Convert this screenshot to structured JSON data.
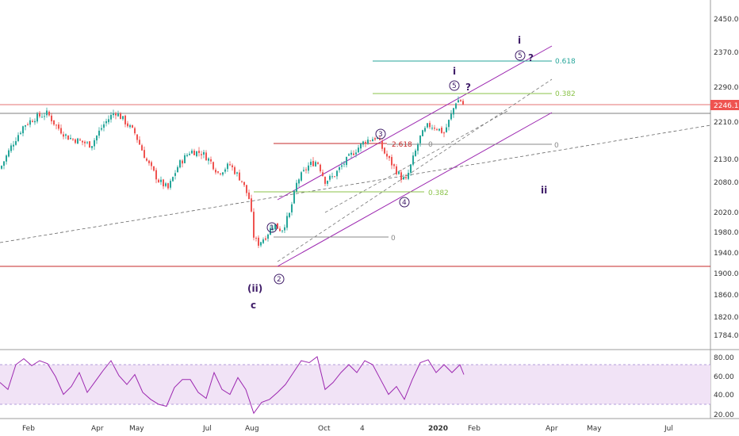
{
  "colors": {
    "background": "#ffffff",
    "candle_up": "#26a69a",
    "candle_down": "#ef5350",
    "channel": "#9c27b0",
    "support_line": "#c62828",
    "grey_line": "#555555",
    "rsi_line": "#9c27b0",
    "rsi_fill": "#efe1f4",
    "price_tag_bg": "#ef5350",
    "wave_label": "#3f1c68",
    "fib_green": "#26a69a",
    "fib_lightgreen": "#8bc34a",
    "fib_red": "#c62828"
  },
  "price_axis": {
    "ticks": [
      "2450.00",
      "2370.00",
      "2290.00",
      "2210.00",
      "2130.00",
      "2080.00",
      "2020.00",
      "1980.00",
      "1940.00",
      "1900.00",
      "1860.00",
      "1820.00",
      "1784.00"
    ],
    "current_price": "2246.13"
  },
  "rsi_axis": {
    "ticks": [
      "80.00",
      "60.00",
      "40.00",
      "20.00"
    ]
  },
  "time_axis": {
    "labels": [
      "Feb",
      "Apr",
      "May",
      "Jul",
      "Aug",
      "Oct",
      "4",
      "2020",
      "Feb",
      "Apr",
      "May",
      "Jul"
    ]
  },
  "fib_labels": {
    "f0618": "0.618",
    "f0382_top": "0.382",
    "f2618": "2.618",
    "f0_a": "0",
    "f0_b": "0",
    "f0382_mid": "0.382",
    "f0_low": "0"
  },
  "wave_labels": {
    "i_top": "i",
    "q_top": "?",
    "i_mid": "i",
    "q_mid": "?",
    "ii": "ii",
    "ii_low": "(ii)",
    "c": "c",
    "w1": "1",
    "w2": "2",
    "w3": "3",
    "w4": "4",
    "w5_top": "5",
    "w5_mid": "5"
  },
  "chart_data": {
    "type": "candlestick",
    "symbol_price_last": 2246.13,
    "y_axis": {
      "min": 1750,
      "max": 2490,
      "ticks": [
        2450,
        2370,
        2290,
        2210,
        2130,
        2080,
        2020,
        1980,
        1940,
        1900,
        1860,
        1820,
        1784
      ]
    },
    "rsi": {
      "ylim": [
        10,
        90
      ],
      "bands": [
        30,
        70
      ],
      "ticks": [
        80,
        60,
        40,
        20
      ]
    },
    "x_labels": [
      "Feb",
      "Apr",
      "May",
      "Jul",
      "Aug",
      "Oct",
      "4",
      "2020",
      "Feb",
      "Apr",
      "May",
      "Jul"
    ],
    "price_path": [
      [
        0,
        2090
      ],
      [
        15,
        2150
      ],
      [
        30,
        2200
      ],
      [
        45,
        2220
      ],
      [
        60,
        2230
      ],
      [
        70,
        2200
      ],
      [
        85,
        2170
      ],
      [
        100,
        2160
      ],
      [
        115,
        2150
      ],
      [
        130,
        2200
      ],
      [
        145,
        2235
      ],
      [
        155,
        2215
      ],
      [
        170,
        2180
      ],
      [
        185,
        2110
      ],
      [
        200,
        2060
      ],
      [
        212,
        2040
      ],
      [
        225,
        2100
      ],
      [
        240,
        2135
      ],
      [
        255,
        2130
      ],
      [
        265,
        2110
      ],
      [
        275,
        2080
      ],
      [
        290,
        2100
      ],
      [
        305,
        2060
      ],
      [
        315,
        2010
      ],
      [
        320,
        1920
      ],
      [
        325,
        1900
      ],
      [
        335,
        1920
      ],
      [
        345,
        1950
      ],
      [
        355,
        1935
      ],
      [
        365,
        1975
      ],
      [
        375,
        2060
      ],
      [
        390,
        2100
      ],
      [
        400,
        2110
      ],
      [
        410,
        2060
      ],
      [
        420,
        2070
      ],
      [
        432,
        2100
      ],
      [
        445,
        2130
      ],
      [
        460,
        2160
      ],
      [
        475,
        2170
      ],
      [
        485,
        2130
      ],
      [
        495,
        2100
      ],
      [
        505,
        2070
      ],
      [
        512,
        2060
      ],
      [
        520,
        2110
      ],
      [
        530,
        2170
      ],
      [
        540,
        2200
      ],
      [
        550,
        2195
      ],
      [
        560,
        2180
      ],
      [
        568,
        2220
      ],
      [
        575,
        2260
      ],
      [
        580,
        2265
      ],
      [
        585,
        2250
      ]
    ],
    "rsi_path": [
      [
        0,
        52
      ],
      [
        10,
        45
      ],
      [
        20,
        70
      ],
      [
        30,
        76
      ],
      [
        40,
        69
      ],
      [
        50,
        74
      ],
      [
        60,
        71
      ],
      [
        70,
        58
      ],
      [
        80,
        40
      ],
      [
        90,
        48
      ],
      [
        100,
        62
      ],
      [
        110,
        42
      ],
      [
        120,
        53
      ],
      [
        130,
        64
      ],
      [
        140,
        74
      ],
      [
        150,
        59
      ],
      [
        160,
        50
      ],
      [
        170,
        60
      ],
      [
        180,
        42
      ],
      [
        190,
        35
      ],
      [
        200,
        30
      ],
      [
        210,
        28
      ],
      [
        220,
        47
      ],
      [
        230,
        55
      ],
      [
        240,
        55
      ],
      [
        250,
        42
      ],
      [
        260,
        36
      ],
      [
        270,
        62
      ],
      [
        280,
        45
      ],
      [
        290,
        40
      ],
      [
        300,
        57
      ],
      [
        310,
        45
      ],
      [
        320,
        21
      ],
      [
        330,
        32
      ],
      [
        340,
        35
      ],
      [
        350,
        42
      ],
      [
        360,
        50
      ],
      [
        370,
        62
      ],
      [
        380,
        74
      ],
      [
        390,
        72
      ],
      [
        400,
        78
      ],
      [
        410,
        45
      ],
      [
        420,
        52
      ],
      [
        430,
        62
      ],
      [
        440,
        70
      ],
      [
        450,
        62
      ],
      [
        460,
        74
      ],
      [
        470,
        70
      ],
      [
        480,
        55
      ],
      [
        490,
        40
      ],
      [
        500,
        48
      ],
      [
        510,
        35
      ],
      [
        520,
        55
      ],
      [
        530,
        72
      ],
      [
        540,
        75
      ],
      [
        550,
        62
      ],
      [
        560,
        70
      ],
      [
        570,
        62
      ],
      [
        580,
        70
      ],
      [
        585,
        60
      ]
    ],
    "fib_levels": [
      {
        "label": "0.618",
        "price": 2360
      },
      {
        "label": "0.382",
        "price": 2283
      },
      {
        "label": "2.618",
        "price": 2165
      },
      {
        "label": "0",
        "price": 2165
      },
      {
        "label": "0.382",
        "price": 2068
      },
      {
        "label": "0",
        "price": 1972
      }
    ],
    "horizontal_levels": [
      2251,
      2222,
      1915
    ]
  }
}
